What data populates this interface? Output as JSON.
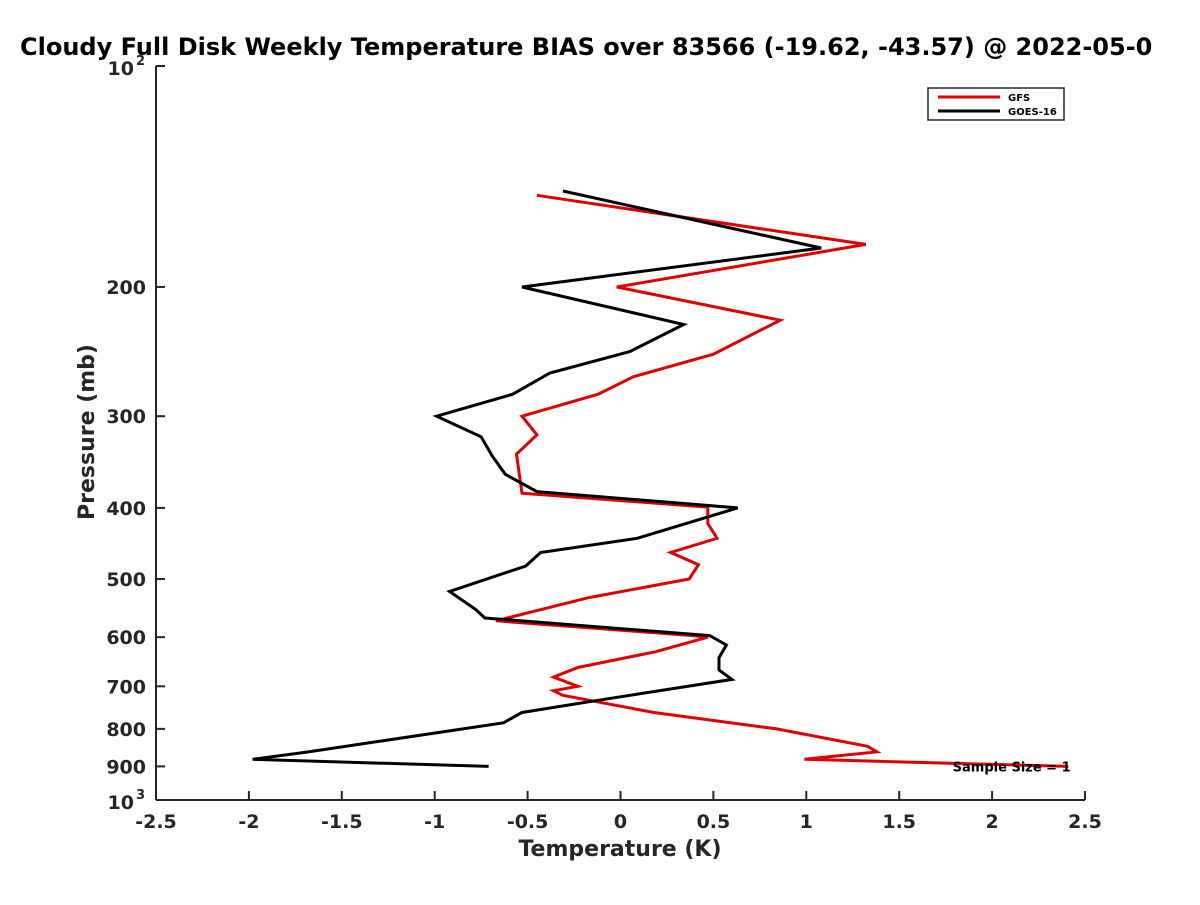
{
  "chart_data": {
    "type": "line",
    "title": "Cloudy Full Disk Weekly Temperature BIAS over 83566 (-19.62, -43.57) @ 2022-05-0",
    "xlabel": "Temperature (K)",
    "ylabel": "Pressure (mb)",
    "xlim": [
      -2.5,
      2.5
    ],
    "ylim": [
      100,
      1000
    ],
    "y_scale": "log",
    "y_reversed": true,
    "x_ticks": [
      -2.5,
      -2,
      -1.5,
      -1,
      -0.5,
      0,
      0.5,
      1,
      1.5,
      2,
      2.5
    ],
    "x_tick_labels": [
      "-2.5",
      "-2",
      "-1.5",
      "-1",
      "-0.5",
      "0",
      "0.5",
      "1",
      "1.5",
      "2",
      "2.5"
    ],
    "y_ticks": [
      200,
      300,
      400,
      500,
      600,
      700,
      800,
      900
    ],
    "y_tick_labels": [
      "200",
      "300",
      "400",
      "500",
      "600",
      "700",
      "800",
      "900"
    ],
    "y_edge_labels": [
      {
        "value": 100,
        "base": "10",
        "exp": "2"
      },
      {
        "value": 1000,
        "base": "10",
        "exp": "3"
      }
    ],
    "grid": false,
    "legend_position": "top-right",
    "series": [
      {
        "name": "GFS",
        "color": "#e00000",
        "x": [
          -0.45,
          1.32,
          -0.02,
          0.86,
          0.5,
          0.07,
          -0.12,
          -0.53,
          -0.45,
          -0.56,
          -0.53,
          0.47,
          0.47,
          0.52,
          0.27,
          0.42,
          0.37,
          -0.17,
          -0.67,
          0.39,
          0.47,
          0.19,
          -0.23,
          -0.36,
          -0.23,
          -0.36,
          -0.31,
          0.18,
          0.84,
          1.33,
          1.38,
          0.99,
          2.41
        ],
        "y": [
          150,
          175,
          200,
          222,
          247,
          265,
          280,
          300,
          318,
          338,
          382,
          399,
          420,
          440,
          460,
          478,
          500,
          530,
          570,
          597,
          600,
          628,
          660,
          680,
          700,
          710,
          720,
          760,
          800,
          845,
          860,
          880,
          900
        ]
      },
      {
        "name": "GOES-16",
        "color": "#000000",
        "x": [
          -0.31,
          1.08,
          -0.53,
          0.34,
          0.05,
          -0.38,
          -0.58,
          -0.99,
          -0.75,
          -0.69,
          -0.62,
          -0.45,
          0.63,
          0.09,
          -0.43,
          -0.51,
          -0.92,
          -0.78,
          -0.73,
          0.48,
          0.57,
          0.53,
          0.53,
          0.6,
          -0.1,
          -0.53,
          -0.63,
          -1.68,
          -1.98,
          -0.71
        ],
        "y": [
          148,
          177,
          200,
          225,
          245,
          262,
          280,
          300,
          320,
          340,
          360,
          380,
          400,
          440,
          460,
          480,
          520,
          550,
          565,
          597,
          615,
          640,
          665,
          685,
          730,
          760,
          785,
          860,
          880,
          900
        ]
      }
    ],
    "annotations": [
      {
        "text": "Sample Size = 1",
        "x": 2.03,
        "y": 900
      }
    ]
  }
}
